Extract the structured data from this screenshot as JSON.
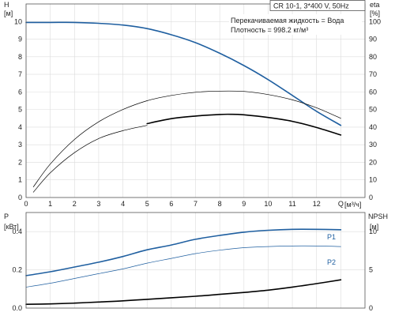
{
  "chart_data": [
    {
      "type": "line",
      "title": "CR 10-1, 3*400 V, 50Hz",
      "annotations": [
        "Перекачиваемая жидкость = Вода",
        "Плотность = 998.2 кг/м³"
      ],
      "xlabel": "Q",
      "xunit": "[м³/ч]",
      "xlim": [
        0,
        14
      ],
      "xticks": [
        "0",
        "1",
        "2",
        "3",
        "4",
        "5",
        "6",
        "7",
        "8",
        "9",
        "10",
        "11",
        "12",
        "Q"
      ],
      "ylabel": "H",
      "yunit": "[м]",
      "ylim": [
        0,
        11
      ],
      "yticks": [
        "0",
        "1",
        "2",
        "3",
        "4",
        "5",
        "6",
        "7",
        "8",
        "9",
        "10"
      ],
      "y2label": "eta",
      "y2unit": "[%]",
      "y2lim": [
        0,
        110
      ],
      "y2ticks": [
        "0",
        "10",
        "20",
        "30",
        "40",
        "50",
        "60",
        "70",
        "80",
        "90",
        "100"
      ],
      "grid": true,
      "series": [
        {
          "axis": "left",
          "color": "#1f5fa0",
          "style": "thick",
          "x": [
            0,
            1,
            2,
            3,
            4,
            5,
            6,
            7,
            8,
            9,
            10,
            11,
            12,
            13
          ],
          "y": [
            9.95,
            9.95,
            9.95,
            9.9,
            9.8,
            9.6,
            9.25,
            8.8,
            8.2,
            7.5,
            6.7,
            5.8,
            4.9,
            4.1
          ]
        },
        {
          "axis": "right",
          "color": "#000000",
          "style": "thin",
          "x": [
            0.3,
            1,
            2,
            3,
            4,
            5,
            6,
            7,
            8,
            9,
            10,
            11,
            12,
            13
          ],
          "y": [
            6,
            19,
            33,
            43,
            50,
            55,
            58,
            59.8,
            60.5,
            60.3,
            58.5,
            55.5,
            51,
            45
          ]
        },
        {
          "axis": "right",
          "color": "#000000",
          "style": "thick",
          "x": [
            5,
            6,
            7,
            8,
            8.5,
            9,
            10,
            11,
            12,
            13
          ],
          "y": [
            42,
            44.8,
            46.3,
            47.2,
            47.3,
            47,
            45.5,
            43.3,
            39.8,
            35.5
          ]
        },
        {
          "axis": "right",
          "color": "#000000",
          "style": "thin",
          "x": [
            0.3,
            1,
            2,
            3,
            4,
            5
          ],
          "y": [
            3,
            14,
            25.5,
            33.5,
            38,
            41
          ]
        }
      ]
    },
    {
      "type": "line",
      "xlim": [
        0,
        14
      ],
      "xticks": [
        "0",
        "1",
        "2",
        "3",
        "4",
        "5",
        "6",
        "7",
        "8",
        "9",
        "10",
        "11",
        "12",
        "Q"
      ],
      "ylabel": "P",
      "yunit": "[кВт]",
      "ylim": [
        0,
        0.5
      ],
      "yticks": [
        "0.0",
        "0.2",
        "0.4"
      ],
      "y2label": "NPSH",
      "y2unit": "[м]",
      "y2lim": [
        0,
        12.5
      ],
      "y2ticks": [
        "0",
        "5",
        "10"
      ],
      "grid": true,
      "series": [
        {
          "name": "P1",
          "axis": "left",
          "color": "#1f5fa0",
          "style": "thick",
          "x": [
            0,
            1,
            2,
            3,
            4,
            5,
            6,
            7,
            8,
            9,
            10,
            11,
            12,
            13
          ],
          "y": [
            0.17,
            0.19,
            0.215,
            0.24,
            0.27,
            0.305,
            0.33,
            0.36,
            0.38,
            0.397,
            0.407,
            0.412,
            0.412,
            0.41
          ]
        },
        {
          "name": "P2",
          "axis": "left",
          "color": "#1f5fa0",
          "style": "thin",
          "x": [
            0,
            1,
            2,
            3,
            4,
            5,
            6,
            7,
            8,
            9,
            10,
            11,
            12,
            13
          ],
          "y": [
            0.11,
            0.13,
            0.155,
            0.18,
            0.205,
            0.235,
            0.26,
            0.285,
            0.303,
            0.316,
            0.322,
            0.325,
            0.325,
            0.322
          ]
        },
        {
          "axis": "right",
          "color": "#000000",
          "style": "thick",
          "x": [
            0,
            1,
            2,
            3,
            4,
            5,
            6,
            7,
            8,
            9,
            10,
            11,
            12,
            13
          ],
          "y": [
            0.5,
            0.55,
            0.65,
            0.8,
            0.95,
            1.15,
            1.35,
            1.55,
            1.8,
            2.05,
            2.35,
            2.75,
            3.2,
            3.7
          ]
        }
      ]
    }
  ]
}
